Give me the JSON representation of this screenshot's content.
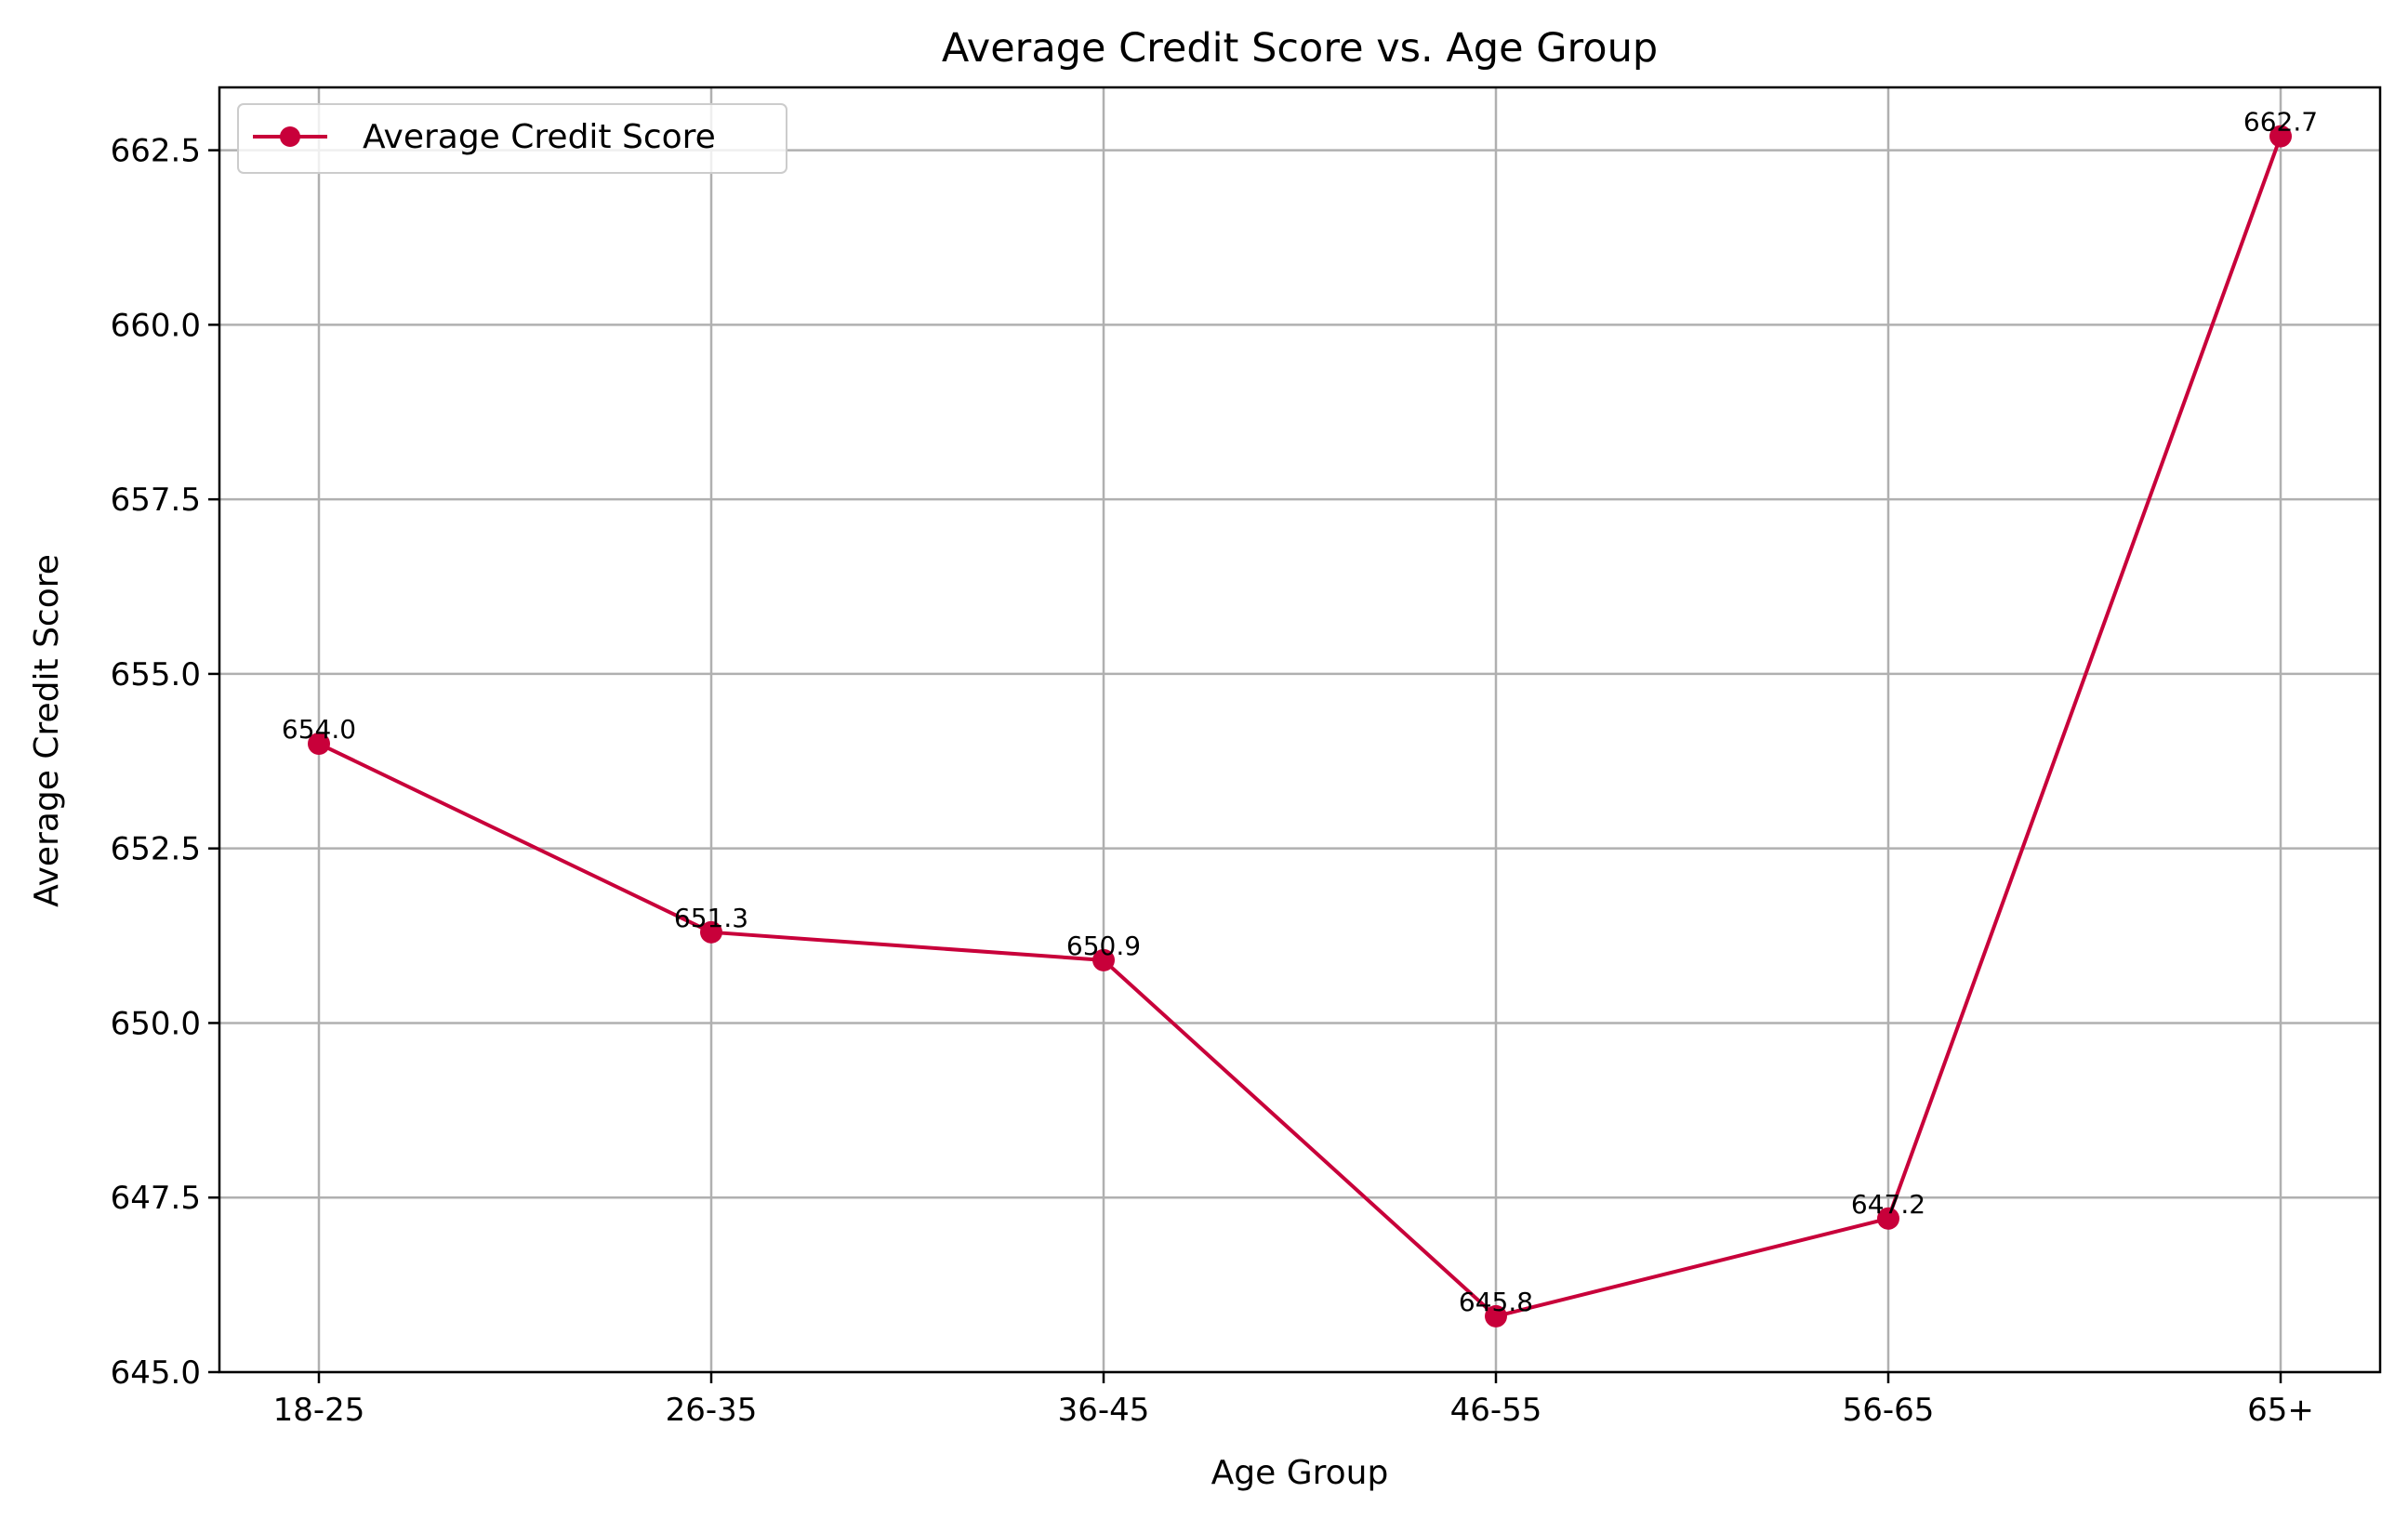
{
  "chart_data": {
    "type": "line",
    "title": "Average Credit Score vs. Age Group",
    "xlabel": "Age Group",
    "ylabel": "Average Credit Score",
    "categories": [
      "18-25",
      "26-35",
      "36-45",
      "46-55",
      "56-65",
      "65+"
    ],
    "series": [
      {
        "name": "Average Credit Score",
        "values": [
          654.0,
          651.3,
          650.9,
          645.8,
          647.2,
          662.7
        ],
        "data_labels": [
          "654.0",
          "651.3",
          "650.9",
          "645.8",
          "647.2",
          "662.7"
        ],
        "color": "#c8003a"
      }
    ],
    "ylim": [
      645.0,
      663.4
    ],
    "yticks": [
      645.0,
      647.5,
      650.0,
      652.5,
      655.0,
      657.5,
      660.0,
      662.5
    ],
    "ytick_labels": [
      "645.0",
      "647.5",
      "650.0",
      "652.5",
      "655.0",
      "657.5",
      "660.0",
      "662.5"
    ],
    "grid": true,
    "legend_position": "top-left",
    "grid_color": "#b0b0b0"
  }
}
